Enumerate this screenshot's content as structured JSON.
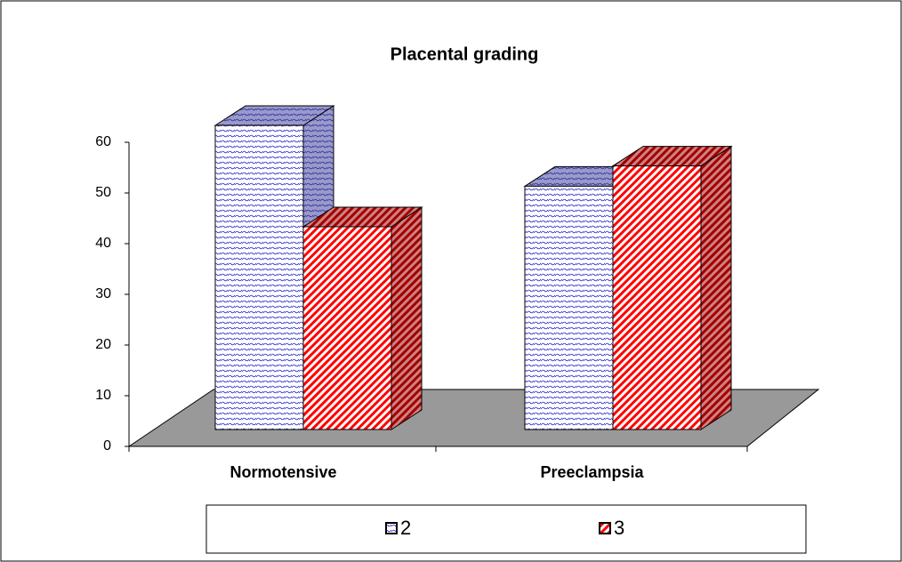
{
  "chart_data": {
    "type": "bar",
    "title": "Placental grading",
    "categories": [
      "Normotensive",
      "Preeclampsia"
    ],
    "series": [
      {
        "name": "2",
        "color": "#3333cc",
        "values": [
          60,
          48
        ]
      },
      {
        "name": "3",
        "color": "#ff0000",
        "values": [
          40,
          52
        ]
      }
    ],
    "ylim": [
      0,
      60
    ],
    "yticks": [
      0,
      10,
      20,
      30,
      40,
      50,
      60
    ],
    "legend": "bottom"
  }
}
